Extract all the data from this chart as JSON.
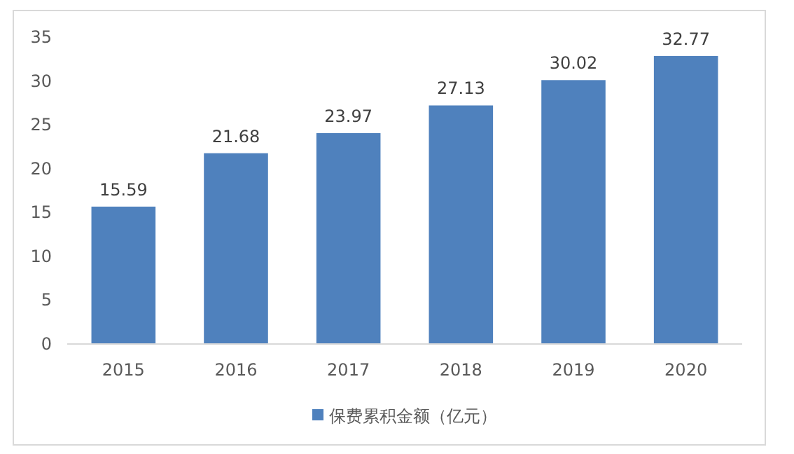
{
  "chart_data": {
    "type": "bar",
    "categories": [
      "2015",
      "2016",
      "2017",
      "2018",
      "2019",
      "2020"
    ],
    "series": [
      {
        "name": "保费累积金额（亿元）",
        "color": "#4f81bd",
        "values": [
          15.59,
          21.68,
          23.97,
          27.13,
          30.02,
          32.77
        ]
      }
    ],
    "ylim": [
      0,
      35
    ],
    "yticks": [
      0,
      5,
      10,
      15,
      20,
      25,
      30,
      35
    ],
    "grid": false,
    "legend": "bottom",
    "data_labels": true
  }
}
